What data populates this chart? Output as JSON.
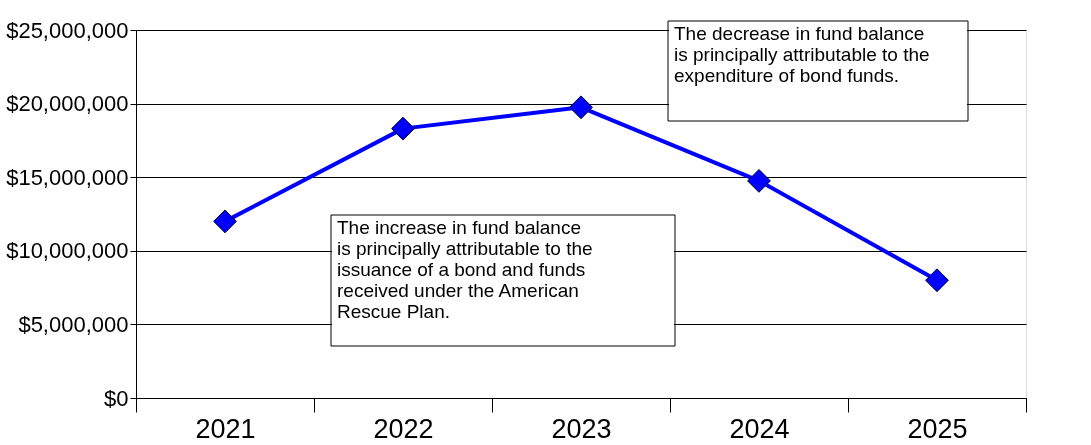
{
  "chart_data": {
    "type": "line",
    "categories": [
      "2021",
      "2022",
      "2023",
      "2024",
      "2025"
    ],
    "series": [
      {
        "color": "#0000ff",
        "values": [
          12000000,
          18300000,
          19750000,
          14750000,
          8000000
        ]
      }
    ],
    "ylim": [
      0,
      25000000
    ],
    "yticks": [
      {
        "value": 0,
        "label": "$0"
      },
      {
        "value": 5000000,
        "label": "$5,000,000"
      },
      {
        "value": 10000000,
        "label": "$10,000,000"
      },
      {
        "value": 15000000,
        "label": "$15,000,000"
      },
      {
        "value": 20000000,
        "label": "$20,000,000"
      },
      {
        "value": 25000000,
        "label": "$25,000,000"
      }
    ],
    "grid": "y",
    "marker": "diamond",
    "line_style": "solid",
    "legend": false,
    "annotations": [
      "The decrease in fund balance\nis principally attributable to the\nexpenditure of bond funds.",
      "The increase in fund balance\nis principally attributable to the\nissuance of a bond and funds\nreceived under the American\nRescue Plan."
    ]
  }
}
